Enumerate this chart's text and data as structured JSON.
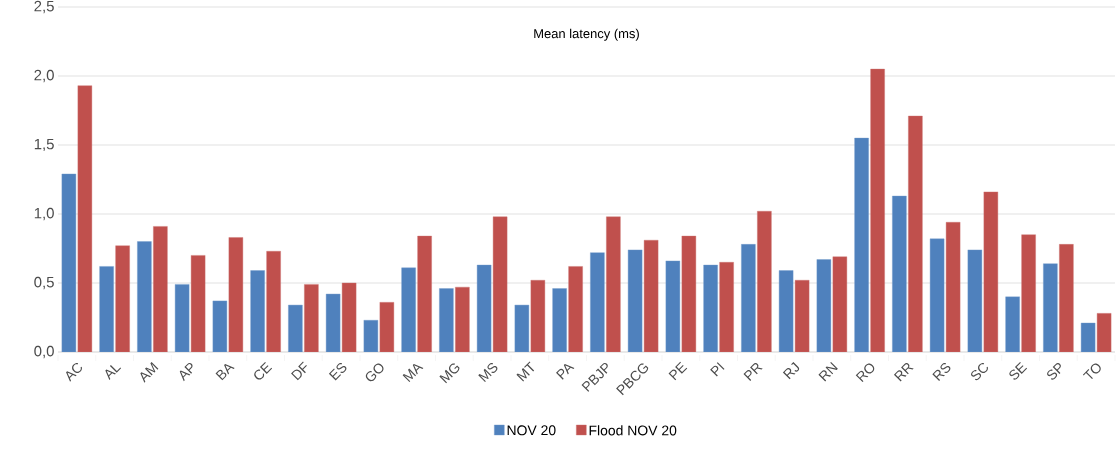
{
  "chart_data": {
    "type": "bar",
    "title": "Mean latency (ms)",
    "categories": [
      "AC",
      "AL",
      "AM",
      "AP",
      "BA",
      "CE",
      "DF",
      "ES",
      "GO",
      "MA",
      "MG",
      "MS",
      "MT",
      "PA",
      "PBJP",
      "PBCG",
      "PE",
      "PI",
      "PR",
      "RJ",
      "RN",
      "RO",
      "RR",
      "RS",
      "SC",
      "SE",
      "SP",
      "TO"
    ],
    "series": [
      {
        "name": "NOV 20",
        "color": "#4f81bd",
        "values": [
          1.29,
          0.62,
          0.8,
          0.49,
          0.37,
          0.59,
          0.34,
          0.42,
          0.23,
          0.61,
          0.46,
          0.63,
          0.34,
          0.46,
          0.72,
          0.74,
          0.66,
          0.63,
          0.78,
          0.59,
          0.67,
          1.55,
          1.13,
          0.82,
          0.74,
          0.4,
          0.64,
          0.21
        ]
      },
      {
        "name": "Flood NOV 20",
        "color": "#c0504d",
        "values": [
          1.93,
          0.77,
          0.91,
          0.7,
          0.83,
          0.73,
          0.49,
          0.5,
          0.36,
          0.84,
          0.47,
          0.98,
          0.52,
          0.62,
          0.98,
          0.81,
          0.84,
          0.65,
          1.02,
          0.52,
          0.69,
          2.05,
          1.71,
          0.94,
          1.16,
          0.85,
          0.78,
          0.28
        ]
      }
    ],
    "ylim": [
      0,
      2.5
    ],
    "yticks": [
      {
        "value": 0,
        "label": "0,0"
      },
      {
        "value": 0.5,
        "label": "0,5"
      },
      {
        "value": 1,
        "label": "1,0"
      },
      {
        "value": 1.5,
        "label": "1,5"
      },
      {
        "value": 2,
        "label": "2,0"
      },
      {
        "value": 2.5,
        "label": "2,5"
      }
    ],
    "grid": "y",
    "legend": "bottom"
  }
}
